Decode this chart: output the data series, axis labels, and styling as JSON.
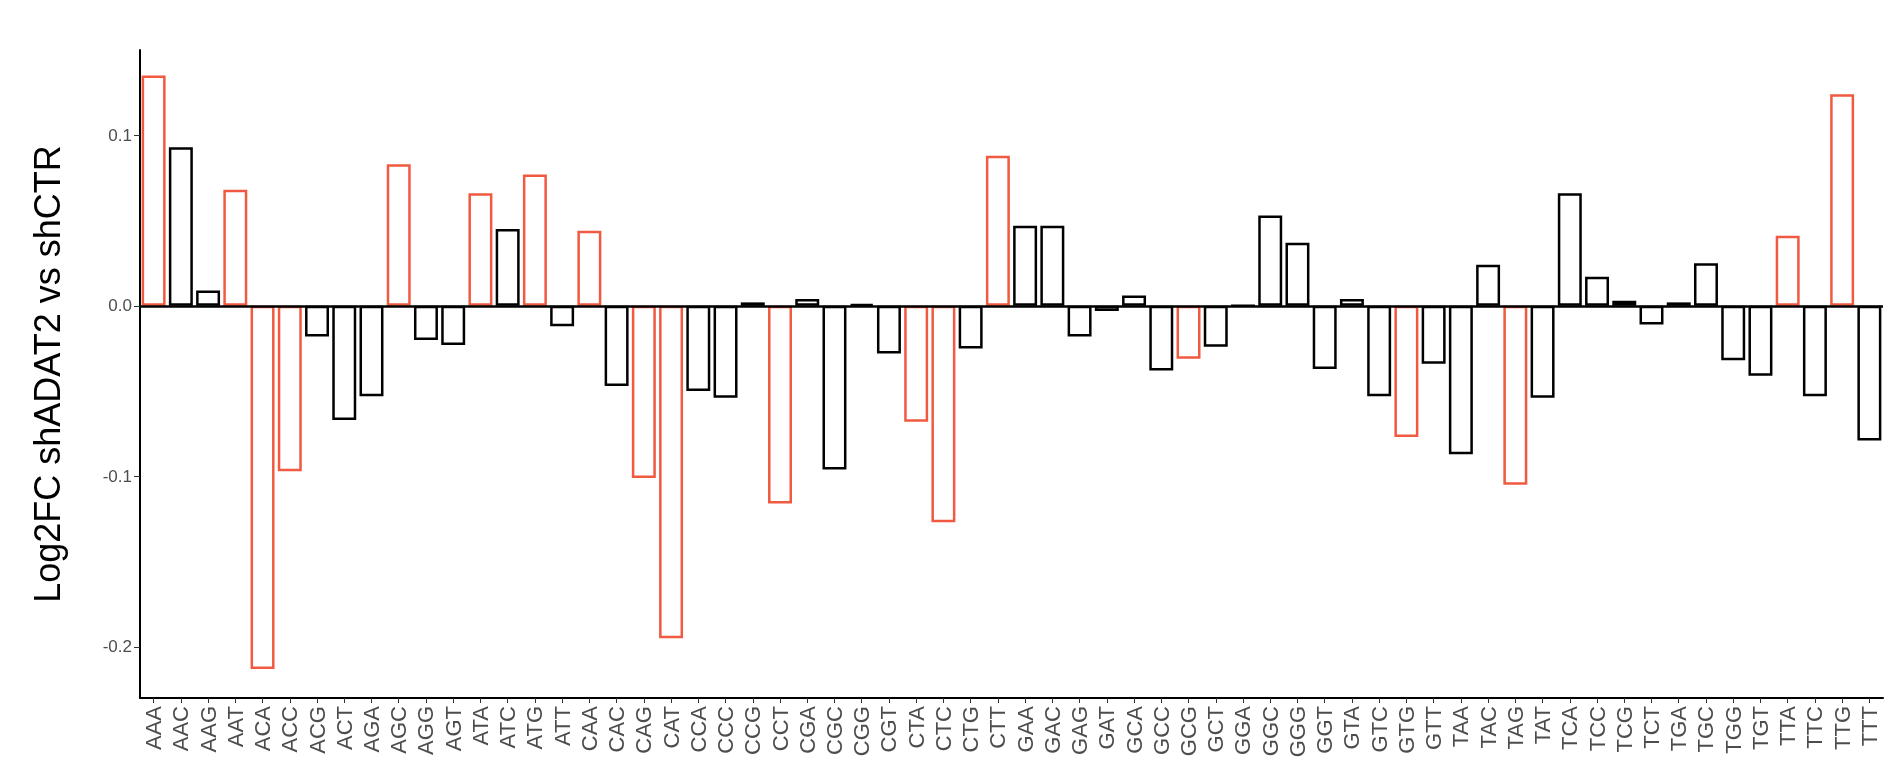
{
  "chart_data": {
    "type": "bar",
    "ylabel": "Log2FC shADAT2 vs shCTR",
    "categories": [
      "AAA",
      "AAC",
      "AAG",
      "AAT",
      "ACA",
      "ACC",
      "ACG",
      "ACT",
      "AGA",
      "AGC",
      "AGG",
      "AGT",
      "ATA",
      "ATC",
      "ATG",
      "ATT",
      "CAA",
      "CAC",
      "CAG",
      "CAT",
      "CCA",
      "CCC",
      "CCG",
      "CCT",
      "CGA",
      "CGC",
      "CGG",
      "CGT",
      "CTA",
      "CTC",
      "CTG",
      "CTT",
      "GAA",
      "GAC",
      "GAG",
      "GAT",
      "GCA",
      "GCC",
      "GCG",
      "GCT",
      "GGA",
      "GGC",
      "GGG",
      "GGT",
      "GTA",
      "GTC",
      "GTG",
      "GTT",
      "TAA",
      "TAC",
      "TAG",
      "TAT",
      "TCA",
      "TCC",
      "TCG",
      "TCT",
      "TGA",
      "TGC",
      "TGG",
      "TGT",
      "TTA",
      "TTC",
      "TTG",
      "TTT"
    ],
    "values": [
      0.135,
      0.093,
      0.009,
      0.068,
      -0.213,
      -0.097,
      -0.018,
      -0.067,
      -0.053,
      0.083,
      -0.02,
      -0.023,
      0.066,
      0.045,
      0.077,
      -0.012,
      0.044,
      -0.047,
      -0.101,
      -0.195,
      -0.05,
      -0.054,
      0.002,
      -0.116,
      0.004,
      -0.096,
      0.001,
      -0.028,
      -0.068,
      -0.127,
      -0.025,
      0.088,
      0.047,
      0.047,
      -0.018,
      -0.003,
      0.006,
      -0.038,
      -0.031,
      -0.024,
      0,
      0.053,
      0.037,
      -0.037,
      0.004,
      -0.053,
      -0.077,
      -0.034,
      -0.087,
      0.024,
      -0.105,
      -0.054,
      0.066,
      0.017,
      0.003,
      -0.011,
      0.002,
      0.025,
      -0.032,
      -0.041,
      0.041,
      -0.053,
      0.124,
      -0.079
    ],
    "colors": [
      "#f05a40",
      "#000000",
      "#000000",
      "#f05a40",
      "#f05a40",
      "#f05a40",
      "#000000",
      "#000000",
      "#000000",
      "#f05a40",
      "#000000",
      "#000000",
      "#f05a40",
      "#000000",
      "#f05a40",
      "#000000",
      "#f05a40",
      "#000000",
      "#f05a40",
      "#f05a40",
      "#000000",
      "#000000",
      "#000000",
      "#f05a40",
      "#000000",
      "#000000",
      "#000000",
      "#000000",
      "#f05a40",
      "#f05a40",
      "#000000",
      "#f05a40",
      "#000000",
      "#000000",
      "#000000",
      "#000000",
      "#000000",
      "#000000",
      "#f05a40",
      "#000000",
      "#000000",
      "#000000",
      "#000000",
      "#000000",
      "#000000",
      "#000000",
      "#f05a40",
      "#000000",
      "#000000",
      "#000000",
      "#f05a40",
      "#000000",
      "#000000",
      "#000000",
      "#000000",
      "#000000",
      "#000000",
      "#000000",
      "#000000",
      "#000000",
      "#f05a40",
      "#000000",
      "#f05a40",
      "#000000"
    ],
    "ylim": [
      -0.23,
      0.15
    ],
    "yticks": [
      -0.2,
      -0.1,
      {
        "value": 0,
        "label": "0.0"
      },
      0.1
    ],
    "ref_lines": [
      {
        "axis": "y",
        "value": 0,
        "color": "#000000"
      }
    ],
    "grid": false
  }
}
